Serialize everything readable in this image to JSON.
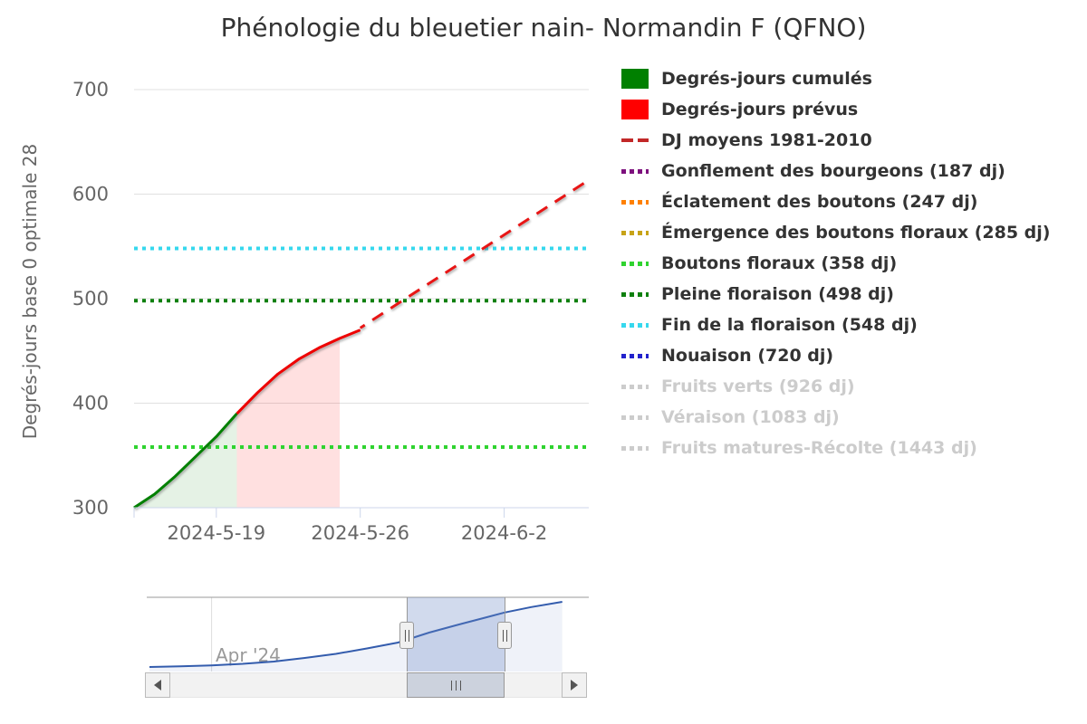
{
  "title": "Phénologie du bleuetier nain- Normandin F (QFNO)",
  "y_axis": {
    "title": "Degrés-jours base 0 optimale 28",
    "ticks": [
      300,
      400,
      500,
      600,
      700
    ]
  },
  "x_axis": {
    "tick_labels": [
      "2024-5-19",
      "2024-5-26",
      "2024-6-2"
    ]
  },
  "legend": {
    "items": [
      {
        "label": "Degrés-jours cumulés",
        "marker": "rect",
        "color": "#008000",
        "disabled": false
      },
      {
        "label": "Degrés-jours prévus",
        "marker": "rect",
        "color": "#ff0000",
        "disabled": false
      },
      {
        "label": "DJ moyens 1981-2010",
        "marker": "dash",
        "color": "#c22828",
        "disabled": false
      },
      {
        "label": "Gonflement des bourgeons (187 dj)",
        "marker": "dots",
        "color": "#7d107d",
        "disabled": false
      },
      {
        "label": "Éclatement des boutons (247 dj)",
        "marker": "dots",
        "color": "#ff8000",
        "disabled": false
      },
      {
        "label": "Émergence des boutons floraux (285 dj)",
        "marker": "dots",
        "color": "#c7a317",
        "disabled": false
      },
      {
        "label": "Boutons floraux (358 dj)",
        "marker": "dots",
        "color": "#2fd32f",
        "disabled": false
      },
      {
        "label": "Pleine floraison (498 dj)",
        "marker": "dots",
        "color": "#0e800e",
        "disabled": false
      },
      {
        "label": "Fin de la floraison (548 dj)",
        "marker": "dots",
        "color": "#36d8ee",
        "disabled": false
      },
      {
        "label": "Nouaison (720 dj)",
        "marker": "dots",
        "color": "#2222cc",
        "disabled": false
      },
      {
        "label": "Fruits verts (926 dj)",
        "marker": "dots",
        "color": "#cccccc",
        "disabled": true
      },
      {
        "label": "Véraison (1083 dj)",
        "marker": "dots",
        "color": "#cccccc",
        "disabled": true
      },
      {
        "label": "Fruits matures-Récolte (1443 dj)",
        "marker": "dots",
        "color": "#cccccc",
        "disabled": true
      }
    ]
  },
  "chart_data": {
    "type": "line",
    "title": "Phénologie du bleuetier nain- Normandin F (QFNO)",
    "xlabel": "",
    "ylabel": "Degrés-jours base 0 optimale 28",
    "ylim": [
      300,
      700
    ],
    "y_ticks": [
      300,
      400,
      500,
      600,
      700
    ],
    "x_ticks": [
      {
        "date": "2024-05-19",
        "label": "2024-5-19"
      },
      {
        "date": "2024-05-26",
        "label": "2024-5-26"
      },
      {
        "date": "2024-06-02",
        "label": "2024-6-2"
      }
    ],
    "x_range": [
      "2024-05-15",
      "2024-06-06"
    ],
    "grid": true,
    "legend_position": "right",
    "series": [
      {
        "name": "Degrés-jours cumulés",
        "type": "area",
        "color": "#008000",
        "fill": "rgba(0,128,0,0.10)",
        "points": [
          [
            "2024-05-15",
            300
          ],
          [
            "2024-05-16",
            313
          ],
          [
            "2024-05-17",
            330
          ],
          [
            "2024-05-18",
            349
          ],
          [
            "2024-05-19",
            368
          ],
          [
            "2024-05-20",
            390
          ]
        ]
      },
      {
        "name": "Degrés-jours prévus",
        "type": "area",
        "color": "#ee0000",
        "fill": "rgba(255,0,0,0.12)",
        "fill_drop_last": true,
        "points": [
          [
            "2024-05-20",
            390
          ],
          [
            "2024-05-21",
            410
          ],
          [
            "2024-05-22",
            428
          ],
          [
            "2024-05-23",
            442
          ],
          [
            "2024-05-24",
            453
          ],
          [
            "2024-05-25",
            462
          ],
          [
            "2024-05-26",
            470
          ]
        ]
      },
      {
        "name": "DJ moyens 1981-2010",
        "type": "line",
        "dash": "14,10",
        "color": "#e81515",
        "points": [
          [
            "2024-05-26",
            472
          ],
          [
            "2024-06-06",
            612
          ]
        ]
      }
    ],
    "stage_lines": [
      {
        "label": "Gonflement des bourgeons",
        "value": 187,
        "color": "#7d107d",
        "disabled": false
      },
      {
        "label": "Éclatement des boutons",
        "value": 247,
        "color": "#ff8000",
        "disabled": false
      },
      {
        "label": "Émergence des boutons floraux",
        "value": 285,
        "color": "#c7a317",
        "disabled": false
      },
      {
        "label": "Boutons floraux",
        "value": 358,
        "color": "#2fd32f",
        "disabled": false
      },
      {
        "label": "Pleine floraison",
        "value": 498,
        "color": "#0e800e",
        "disabled": false
      },
      {
        "label": "Fin de la floraison",
        "value": 548,
        "color": "#36d8ee",
        "disabled": false
      },
      {
        "label": "Nouaison",
        "value": 720,
        "color": "#2222cc",
        "disabled": false
      },
      {
        "label": "Fruits verts",
        "value": 926,
        "color": "#cccccc",
        "disabled": true
      },
      {
        "label": "Véraison",
        "value": 1083,
        "color": "#cccccc",
        "disabled": true
      },
      {
        "label": "Fruits matures-Récolte",
        "value": 1443,
        "color": "#cccccc",
        "disabled": true
      }
    ],
    "navigator": {
      "month_label": "Apr '24",
      "month_line_date": "2024-04-01",
      "line_color": "#335cad",
      "range_start": "2024-03-18",
      "selection": [
        "2024-05-15",
        "2024-06-06"
      ],
      "points": [
        [
          "2024-03-18",
          10
        ],
        [
          "2024-03-25",
          18
        ],
        [
          "2024-04-01",
          28
        ],
        [
          "2024-04-08",
          45
        ],
        [
          "2024-04-15",
          70
        ],
        [
          "2024-04-22",
          110
        ],
        [
          "2024-04-29",
          155
        ],
        [
          "2024-05-06",
          215
        ],
        [
          "2024-05-13",
          280
        ],
        [
          "2024-05-20",
          390
        ],
        [
          "2024-05-26",
          470
        ],
        [
          "2024-06-02",
          560
        ],
        [
          "2024-06-06",
          612
        ],
        [
          "2024-06-12",
          672
        ],
        [
          "2024-06-19",
          730
        ]
      ]
    }
  },
  "navigator": {
    "month_label": "Apr '24"
  }
}
